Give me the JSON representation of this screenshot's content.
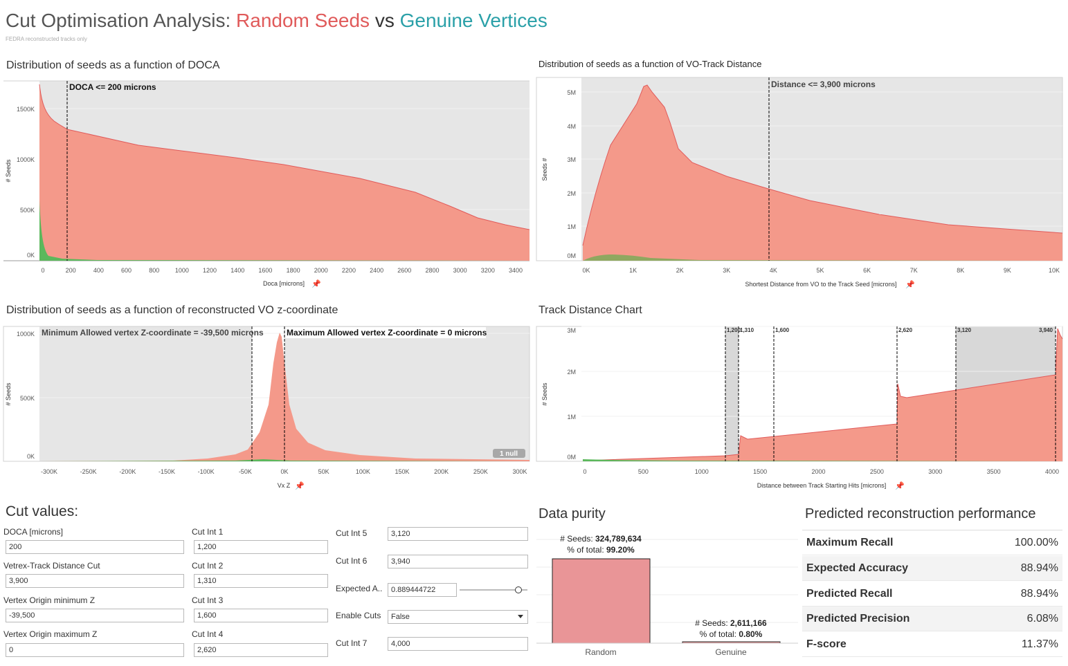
{
  "header": {
    "title_prefix": "Cut Optimisation Analysis: ",
    "title_red": "Random Seeds",
    "title_vs": " vs ",
    "title_teal": "Genuine Vertices",
    "subtitle": "FEDRA reconstructed tracks only"
  },
  "colors": {
    "random": "#f4998a",
    "random_line": "#e05a5a",
    "genuine": "#5cb85c",
    "bg_grey": "#e6e6e6",
    "teal": "#2aa0a8"
  },
  "doca_chart": {
    "title": "Distribution of seeds as a function of DOCA",
    "ylabel": "# Seeds",
    "xlabel": "Doca [microns]",
    "annotation": "DOCA <= 200 microns",
    "yticks": [
      "1500K",
      "1000K",
      "500K",
      "0K"
    ],
    "xticks": [
      "0",
      "200",
      "400",
      "600",
      "800",
      "1000",
      "1200",
      "1400",
      "1600",
      "1800",
      "2000",
      "2200",
      "2400",
      "2600",
      "2800",
      "3000",
      "3200",
      "3400"
    ]
  },
  "vo_chart": {
    "title": "Distribution of seeds as a function of VO-Track Distance",
    "ylabel": "Seeds #",
    "xlabel": "Shortest Distance from VO to the Track Seed [microns]",
    "annotation": "Distance <= 3,900 microns",
    "yticks": [
      "5M",
      "4M",
      "3M",
      "2M",
      "1M",
      "0M"
    ],
    "xticks": [
      "0K",
      "1K",
      "2K",
      "3K",
      "4K",
      "5K",
      "6K",
      "7K",
      "8K",
      "9K",
      "10K"
    ]
  },
  "vz_chart": {
    "title": "Distribution of seeds as a function of reconstructed VO z-coordinate",
    "ylabel": "# Seeds",
    "xlabel": "Vx Z",
    "annotation_min": "Minimum Allowed vertex Z-coordinate = -39,500 microns",
    "annotation_max": "Maximum Allowed vertex Z-coordinate = 0 microns",
    "null_badge": "1 null",
    "yticks": [
      "1000K",
      "500K",
      "0K"
    ],
    "xticks": [
      "-300K",
      "-250K",
      "-200K",
      "-150K",
      "-100K",
      "-50K",
      "0K",
      "50K",
      "100K",
      "150K",
      "200K",
      "250K",
      "300K"
    ]
  },
  "track_chart": {
    "title": "Track Distance Chart",
    "ylabel": "# Seeds",
    "xlabel": "Distance between Track Starting Hits [microns]",
    "cut_labels": [
      "1,200",
      "1,310",
      "1,600",
      "2,620",
      "3,120",
      "3,940"
    ],
    "yticks": [
      "3M",
      "2M",
      "1M",
      "0M"
    ],
    "xticks": [
      "0",
      "500",
      "1000",
      "1500",
      "2000",
      "2500",
      "3000",
      "3500",
      "4000"
    ]
  },
  "cut_values": {
    "title": "Cut values:",
    "doca_label": "DOCA [microns]",
    "doca_value": "200",
    "vtd_label": "Vetrex-Track Distance Cut",
    "vtd_value": "3,900",
    "vomin_label": "Vertex Origin minimum Z",
    "vomin_value": "-39,500",
    "vomax_label": "Vertex Origin maximum Z",
    "vomax_value": "0",
    "ci1_label": "Cut Int 1",
    "ci1_value": "1,200",
    "ci2_label": "Cut Int 2",
    "ci2_value": "1,310",
    "ci3_label": "Cut Int 3",
    "ci3_value": "1,600",
    "ci4_label": "Cut Int 4",
    "ci4_value": "2,620",
    "ci5_label": "Cut Int 5",
    "ci5_value": "3,120",
    "ci6_label": "Cut Int 6",
    "ci6_value": "3,940",
    "ea_label": "Expected A..",
    "ea_value": "0.889444722",
    "enable_label": "Enable Cuts",
    "enable_value": "False",
    "ci7_label": "Cut Int 7",
    "ci7_value": "4,000"
  },
  "purity": {
    "title": "Data purity",
    "random": {
      "label": "Random",
      "seeds_label": "# Seeds: ",
      "seeds_value": "324,789,634",
      "pct_label": "% of total: ",
      "pct_value": "99.20%",
      "share": 0.992
    },
    "genuine": {
      "label": "Genuine",
      "seeds_label": "# Seeds: ",
      "seeds_value": "2,611,166",
      "pct_label": "% of total: ",
      "pct_value": "0.80%",
      "share": 0.008
    }
  },
  "performance": {
    "title": "Predicted reconstruction performance",
    "rows": [
      {
        "k": "Maximum Recall",
        "v": "100.00%"
      },
      {
        "k": "Expected Accuracy",
        "v": "88.94%"
      },
      {
        "k": "Predicted Recall",
        "v": "88.94%"
      },
      {
        "k": "Predicted Precision",
        "v": "6.08%"
      },
      {
        "k": "F-score",
        "v": "11.37%"
      }
    ]
  }
}
